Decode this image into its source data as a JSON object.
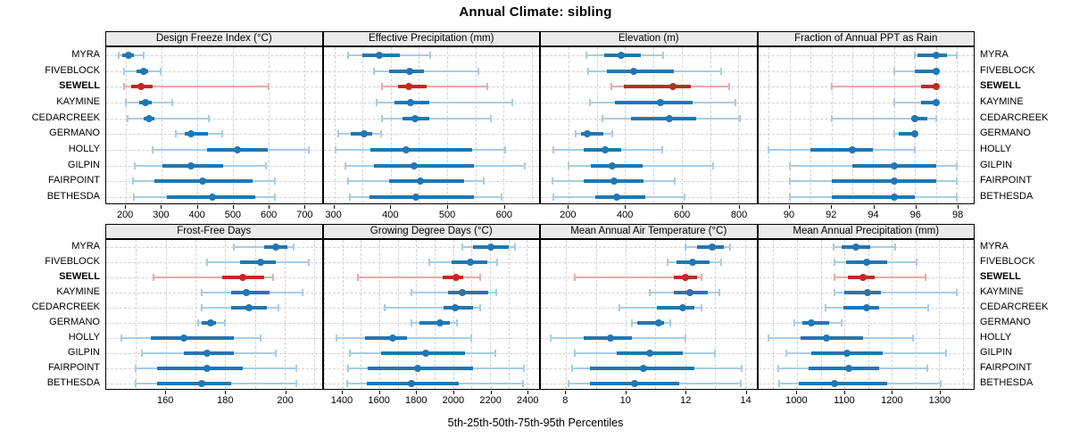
{
  "title": "Annual Climate: sibling",
  "caption": "5th-25th-50th-75th-95th Percentiles",
  "highlight_site": "SEWELL",
  "sites": [
    "MYRA",
    "FIVEBLOCK",
    "SEWELL",
    "KAYMINE",
    "CEDARCREEK",
    "GERMANO",
    "HOLLY",
    "GILPIN",
    "FAIRPOINT",
    "BETHESDA"
  ],
  "colors": {
    "blue": "#1f77b4",
    "blue_light": "#a9cce4",
    "red": "#c02b25",
    "red_light": "#e7aba6",
    "strip_bg": "#ebebeb",
    "panel_border": "#000000",
    "grid": "#d2d2d2",
    "text": "#000000"
  },
  "chart_data": {
    "type": "dotplot",
    "subtype": "percentile-range-trellis",
    "layout": "2 rows x 4 columns, shared site rows, free x scales",
    "percentiles": [
      5,
      25,
      50,
      75,
      95
    ],
    "legend": "thin light line = 5th-95th, thick line = 25th-75th, dot = 50th; SEWELL highlighted red",
    "panels": [
      {
        "title": "Design Freeze Index (°C)",
        "xlim": [
          145,
          750
        ],
        "ticks": [
          200,
          300,
          400,
          500,
          600,
          700
        ],
        "gridlines": [
          200,
          300,
          400,
          500,
          600,
          700
        ],
        "series": [
          {
            "site": "MYRA",
            "p": [
              180,
              190,
              207,
              222,
              250
            ]
          },
          {
            "site": "FIVEBLOCK",
            "p": [
              195,
              230,
              250,
              264,
              297
            ]
          },
          {
            "site": "SEWELL",
            "p": [
              195,
              214,
              243,
              276,
              600
            ]
          },
          {
            "site": "KAYMINE",
            "p": [
              200,
              238,
              255,
              272,
              330
            ]
          },
          {
            "site": "CEDARCREEK",
            "p": [
              204,
              250,
              266,
              280,
              433
            ]
          },
          {
            "site": "GERMANO",
            "p": [
              340,
              365,
              383,
              430,
              470
            ]
          },
          {
            "site": "HOLLY",
            "p": [
              276,
              429,
              514,
              598,
              714
            ]
          },
          {
            "site": "GILPIN",
            "p": [
              226,
              302,
              383,
              474,
              594
            ]
          },
          {
            "site": "FAIRPOINT",
            "p": [
              220,
              280,
              415,
              557,
              619
            ]
          },
          {
            "site": "BETHESDA",
            "p": [
              222,
              316,
              444,
              564,
              619
            ]
          }
        ]
      },
      {
        "title": "Effective Precipitation (mm)",
        "xlim": [
          281,
          663
        ],
        "ticks": [
          300,
          400,
          500,
          600
        ],
        "gridlines": [
          300,
          350,
          400,
          450,
          500,
          550,
          600,
          650
        ],
        "series": [
          {
            "site": "MYRA",
            "p": [
              325,
              350,
              380,
              417,
              470
            ]
          },
          {
            "site": "FIVEBLOCK",
            "p": [
              371,
              397,
              434,
              459,
              555
            ]
          },
          {
            "site": "SEWELL",
            "p": [
              384,
              413,
              432,
              464,
              572
            ]
          },
          {
            "site": "KAYMINE",
            "p": [
              375,
              406,
              435,
              468,
              616
            ]
          },
          {
            "site": "CEDARCREEK",
            "p": [
              384,
              421,
              443,
              469,
              577
            ]
          },
          {
            "site": "GERMANO",
            "p": [
              307,
              330,
              353,
              368,
              383
            ]
          },
          {
            "site": "HOLLY",
            "p": [
              303,
              364,
              427,
              545,
              603
            ]
          },
          {
            "site": "GILPIN",
            "p": [
              320,
              370,
              442,
              548,
              637
            ]
          },
          {
            "site": "FAIRPOINT",
            "p": [
              325,
              398,
              452,
              530,
              565
            ]
          },
          {
            "site": "BETHESDA",
            "p": [
              328,
              362,
              445,
              548,
              597
            ]
          }
        ]
      },
      {
        "title": "Elevation (m)",
        "xlim": [
          102,
          864
        ],
        "ticks": [
          200,
          400,
          600,
          800
        ],
        "gridlines": [
          200,
          300,
          400,
          500,
          600,
          700,
          800
        ],
        "series": [
          {
            "site": "MYRA",
            "p": [
              263,
              325,
              386,
              454,
              535
            ]
          },
          {
            "site": "FIVEBLOCK",
            "p": [
              268,
              336,
              431,
              571,
              740
            ]
          },
          {
            "site": "SEWELL",
            "p": [
              350,
              395,
              570,
              633,
              768
            ]
          },
          {
            "site": "KAYMINE",
            "p": [
              275,
              365,
              525,
              640,
              790
            ]
          },
          {
            "site": "CEDARCREEK",
            "p": [
              320,
              420,
              555,
              650,
              805
            ]
          },
          {
            "site": "GERMANO",
            "p": [
              225,
              243,
              267,
              322,
              355
            ]
          },
          {
            "site": "HOLLY",
            "p": [
              145,
              255,
              330,
              385,
              530
            ]
          },
          {
            "site": "GILPIN",
            "p": [
              200,
              280,
              353,
              462,
              710
            ]
          },
          {
            "site": "FAIRPOINT",
            "p": [
              143,
              252,
              360,
              464,
              574
            ]
          },
          {
            "site": "BETHESDA",
            "p": [
              145,
              294,
              369,
              472,
              609
            ]
          }
        ]
      },
      {
        "title": "Fraction of Annual PPT as Rain",
        "xlim": [
          88.5,
          98.8
        ],
        "ticks": [
          90,
          92,
          94,
          96,
          98
        ],
        "gridlines": [
          89,
          90,
          91,
          92,
          93,
          94,
          95,
          96,
          97,
          98
        ],
        "series": [
          {
            "site": "MYRA",
            "p": [
              96,
              96.1,
              97,
              97.5,
              98
            ]
          },
          {
            "site": "FIVEBLOCK",
            "p": [
              95,
              96,
              97,
              97,
              97
            ]
          },
          {
            "site": "SEWELL",
            "p": [
              92,
              96.3,
              97,
              97,
              97
            ]
          },
          {
            "site": "KAYMINE",
            "p": [
              95,
              96.3,
              97,
              97,
              97
            ]
          },
          {
            "site": "CEDARCREEK",
            "p": [
              92,
              95.8,
              96,
              96.6,
              97
            ]
          },
          {
            "site": "GERMANO",
            "p": [
              95,
              95.2,
              96,
              96,
              96
            ]
          },
          {
            "site": "HOLLY",
            "p": [
              89,
              91,
              93,
              94,
              96
            ]
          },
          {
            "site": "GILPIN",
            "p": [
              90,
              93,
              95,
              97,
              98
            ]
          },
          {
            "site": "FAIRPOINT",
            "p": [
              90,
              92,
              95,
              97,
              98
            ]
          },
          {
            "site": "BETHESDA",
            "p": [
              90,
              92,
              95,
              96,
              98
            ]
          }
        ]
      },
      {
        "title": "Frost-Free Days",
        "xlim": [
          140,
          212.5
        ],
        "ticks": [
          160,
          180,
          200
        ],
        "gridlines": [
          150,
          160,
          170,
          180,
          190,
          200,
          210
        ],
        "series": [
          {
            "site": "MYRA",
            "p": [
              183,
              193,
              197,
              201,
              203
            ]
          },
          {
            "site": "FIVEBLOCK",
            "p": [
              174,
              185,
              192,
              197,
              208
            ]
          },
          {
            "site": "SEWELL",
            "p": [
              156,
              179,
              186,
              193,
              196
            ]
          },
          {
            "site": "KAYMINE",
            "p": [
              172,
              182,
              187,
              195,
              206
            ]
          },
          {
            "site": "CEDARCREEK",
            "p": [
              172,
              182,
              188,
              194,
              198
            ]
          },
          {
            "site": "GERMANO",
            "p": [
              171,
              172,
              175,
              177,
              180
            ]
          },
          {
            "site": "HOLLY",
            "p": [
              145,
              155,
              166,
              183,
              192
            ]
          },
          {
            "site": "GILPIN",
            "p": [
              152,
              166,
              174,
              183,
              197
            ]
          },
          {
            "site": "FAIRPOINT",
            "p": [
              150,
              157,
              174,
              186,
              204
            ]
          },
          {
            "site": "BETHESDA",
            "p": [
              150,
              157,
              172,
              182,
              204
            ]
          }
        ]
      },
      {
        "title": "Growing Degree Days (°C)",
        "xlim": [
          1297,
          2466
        ],
        "ticks": [
          1400,
          1600,
          1800,
          2000,
          2200,
          2400
        ],
        "gridlines": [
          1300,
          1400,
          1500,
          1600,
          1700,
          1800,
          1900,
          2000,
          2100,
          2200,
          2300,
          2400
        ],
        "series": [
          {
            "site": "MYRA",
            "p": [
              2050,
              2110,
              2205,
              2300,
              2335
            ]
          },
          {
            "site": "FIVEBLOCK",
            "p": [
              1870,
              1990,
              2095,
              2185,
              2240
            ]
          },
          {
            "site": "SEWELL",
            "p": [
              1485,
              1945,
              2015,
              2055,
              2145
            ]
          },
          {
            "site": "KAYMINE",
            "p": [
              1775,
              1970,
              2050,
              2190,
              2235
            ]
          },
          {
            "site": "CEDARCREEK",
            "p": [
              1630,
              1950,
              2010,
              2110,
              2145
            ]
          },
          {
            "site": "GERMANO",
            "p": [
              1775,
              1815,
              1930,
              1980,
              2020
            ]
          },
          {
            "site": "HOLLY",
            "p": [
              1368,
              1520,
              1670,
              1750,
              2100
            ]
          },
          {
            "site": "GILPIN",
            "p": [
              1440,
              1610,
              1850,
              2065,
              2230
            ]
          },
          {
            "site": "FAIRPOINT",
            "p": [
              1430,
              1536,
              1808,
              2110,
              2385
            ]
          },
          {
            "site": "BETHESDA",
            "p": [
              1425,
              1530,
              1776,
              2030,
              2380
            ]
          }
        ]
      },
      {
        "title": "Mean Annual Air Temperature (°C)",
        "xlim": [
          7.16,
          14.38
        ],
        "ticks": [
          8,
          10,
          12,
          14
        ],
        "gridlines": [
          8,
          9,
          10,
          11,
          12,
          13,
          14
        ],
        "series": [
          {
            "site": "MYRA",
            "p": [
              12.0,
              12.4,
              12.9,
              13.3,
              13.5
            ]
          },
          {
            "site": "FIVEBLOCK",
            "p": [
              11.4,
              11.7,
              12.25,
              12.8,
              13.2
            ]
          },
          {
            "site": "SEWELL",
            "p": [
              8.3,
              11.6,
              12.0,
              12.4,
              12.55
            ]
          },
          {
            "site": "KAYMINE",
            "p": [
              10.8,
              11.6,
              12.15,
              12.75,
              13.15
            ]
          },
          {
            "site": "CEDARCREEK",
            "p": [
              9.8,
              11.05,
              11.9,
              12.3,
              12.55
            ]
          },
          {
            "site": "GERMANO",
            "p": [
              10.2,
              10.4,
              11.1,
              11.3,
              11.5
            ]
          },
          {
            "site": "HOLLY",
            "p": [
              7.5,
              8.6,
              9.5,
              10.2,
              12.0
            ]
          },
          {
            "site": "GILPIN",
            "p": [
              8.3,
              9.7,
              10.8,
              11.9,
              13.0
            ]
          },
          {
            "site": "FAIRPOINT",
            "p": [
              8.2,
              8.8,
              10.6,
              12.3,
              13.9
            ]
          },
          {
            "site": "BETHESDA",
            "p": [
              8.1,
              8.8,
              10.3,
              11.8,
              13.85
            ]
          }
        ]
      },
      {
        "title": "Mean Annual Precipitation (mm)",
        "xlim": [
          918,
          1373
        ],
        "ticks": [
          1000,
          1100,
          1200,
          1300
        ],
        "gridlines": [
          950,
          1000,
          1050,
          1100,
          1150,
          1200,
          1250,
          1300,
          1350
        ],
        "series": [
          {
            "site": "MYRA",
            "p": [
              1078,
              1095,
              1125,
              1155,
              1208
            ]
          },
          {
            "site": "FIVEBLOCK",
            "p": [
              1080,
              1104,
              1146,
              1190,
              1252
            ]
          },
          {
            "site": "SEWELL",
            "p": [
              1080,
              1107,
              1140,
              1163,
              1271
            ]
          },
          {
            "site": "KAYMINE",
            "p": [
              1079,
              1100,
              1148,
              1178,
              1337
            ]
          },
          {
            "site": "CEDARCREEK",
            "p": [
              1060,
              1098,
              1146,
              1173,
              1276
            ]
          },
          {
            "site": "GERMANO",
            "p": [
              995,
              1012,
              1030,
              1068,
              1095
            ]
          },
          {
            "site": "HOLLY",
            "p": [
              940,
              1007,
              1062,
              1140,
              1245
            ]
          },
          {
            "site": "GILPIN",
            "p": [
              978,
              1030,
              1105,
              1180,
              1314
            ]
          },
          {
            "site": "FAIRPOINT",
            "p": [
              960,
              1025,
              1110,
              1174,
              1275
            ]
          },
          {
            "site": "BETHESDA",
            "p": [
              963,
              1004,
              1080,
              1190,
              1304
            ]
          }
        ]
      }
    ]
  }
}
